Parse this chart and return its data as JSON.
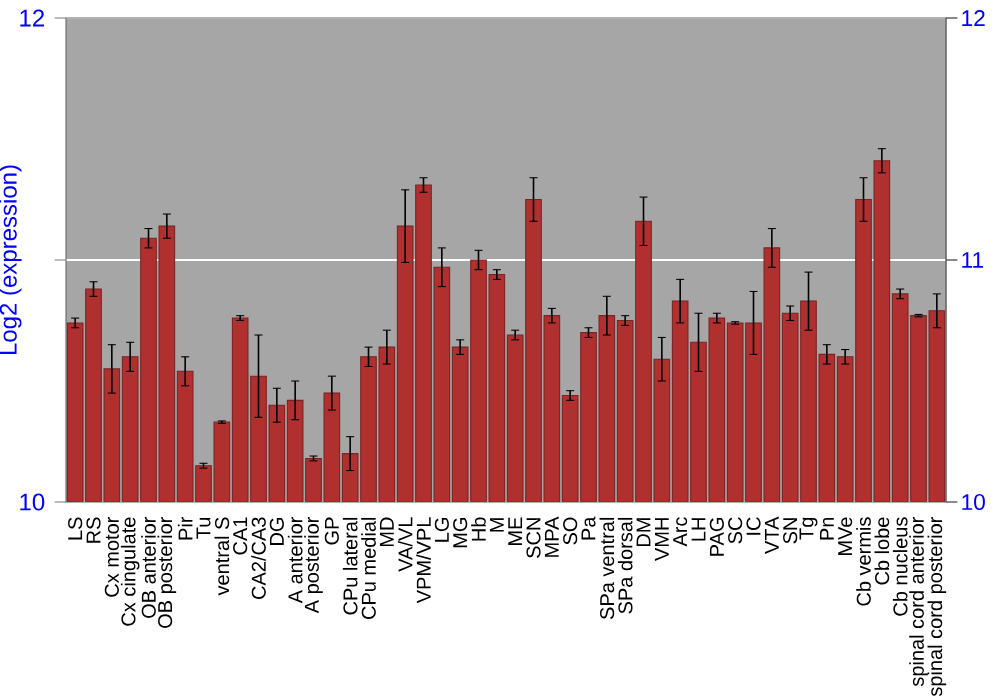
{
  "chart_data": {
    "type": "bar",
    "ylabel": "Log2 (expression)",
    "categories": [
      "LS",
      "RS",
      "Cx motor",
      "Cx cingulate",
      "OB anterior",
      "OB posterior",
      "Pir",
      "Tu",
      "ventral S",
      "CA1",
      "CA2/CA3",
      "DG",
      "A anterior",
      "A posterior",
      "GP",
      "CPu lateral",
      "CPu medial",
      "MD",
      "VA/VL",
      "VPM/VPL",
      "LG",
      "MG",
      "Hb",
      "M",
      "ME",
      "SCN",
      "MPA",
      "SO",
      "Pa",
      "SPa ventral",
      "SPa dorsal",
      "DM",
      "VMH",
      "Arc",
      "LH",
      "PAG",
      "SC",
      "IC",
      "VTA",
      "SN",
      "Tg",
      "Pn",
      "MVe",
      "Cb vermis",
      "Cb lobe",
      "Cb nucleus",
      "spinal cord anterior",
      "spinal cord posterior"
    ],
    "values": [
      10.74,
      10.88,
      10.55,
      10.6,
      11.09,
      11.14,
      10.54,
      10.15,
      10.33,
      10.76,
      10.52,
      10.4,
      10.42,
      10.18,
      10.45,
      10.2,
      10.6,
      10.64,
      11.14,
      11.31,
      10.97,
      10.64,
      11.0,
      10.94,
      10.69,
      11.25,
      10.77,
      10.44,
      10.7,
      10.77,
      10.75,
      11.16,
      10.59,
      10.83,
      10.66,
      10.76,
      10.74,
      10.74,
      11.05,
      10.78,
      10.83,
      10.61,
      10.6,
      11.25,
      11.41,
      10.86,
      10.77,
      10.79
    ],
    "errors": [
      0.02,
      0.03,
      0.1,
      0.06,
      0.04,
      0.05,
      0.06,
      0.01,
      0.005,
      0.01,
      0.17,
      0.07,
      0.08,
      0.01,
      0.07,
      0.07,
      0.04,
      0.07,
      0.15,
      0.03,
      0.08,
      0.03,
      0.04,
      0.02,
      0.02,
      0.09,
      0.03,
      0.02,
      0.02,
      0.08,
      0.02,
      0.1,
      0.09,
      0.09,
      0.12,
      0.02,
      0.005,
      0.13,
      0.08,
      0.03,
      0.12,
      0.04,
      0.03,
      0.09,
      0.05,
      0.02,
      0.005,
      0.07
    ],
    "color": "#b03030",
    "ylim": [
      10,
      12
    ],
    "yticks": [
      10,
      {
        "value": 11,
        "label": null
      },
      12
    ],
    "y2lim": [
      10,
      12
    ],
    "y2ticks": [
      10,
      11,
      12
    ],
    "grid": "y"
  }
}
